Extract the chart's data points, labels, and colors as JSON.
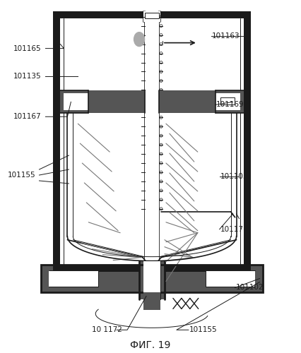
{
  "title": "ФИГ. 19",
  "bg_color": "#ffffff",
  "lc": "#1a1a1a",
  "gray_dark": "#555555",
  "gray_mid": "#888888",
  "gray_light": "#cccccc"
}
